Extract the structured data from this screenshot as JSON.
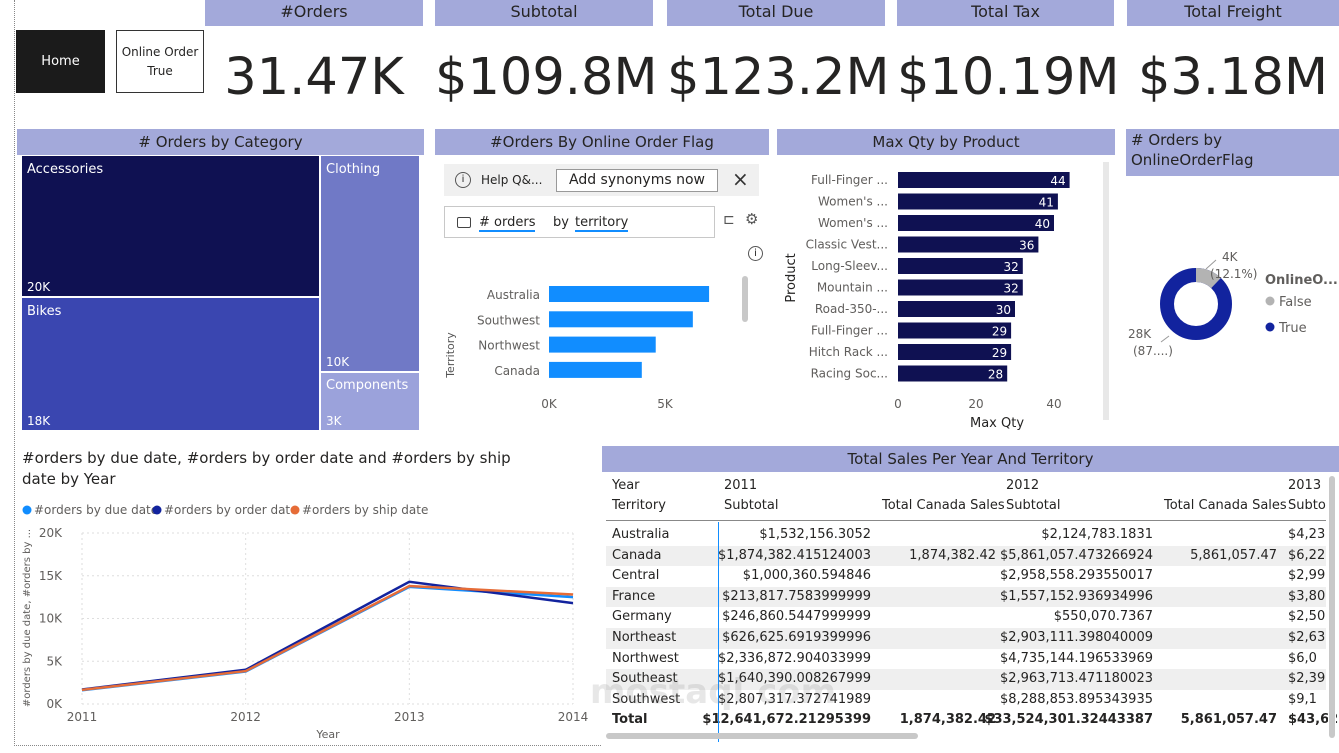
{
  "nav": {
    "home": "Home",
    "online_label": "Online Order",
    "online_value": "True"
  },
  "kpis": [
    {
      "label": "#Orders",
      "value": "31.47K"
    },
    {
      "label": "Subtotal",
      "value": "$109.8M"
    },
    {
      "label": "Total Due",
      "value": "$123.2M"
    },
    {
      "label": "Total Tax",
      "value": "$10.19M"
    },
    {
      "label": "Total Freight",
      "value": "$3.18M"
    }
  ],
  "treemap": {
    "title": "# Orders by Category",
    "cells": [
      {
        "label": "Accessories",
        "value": "20K",
        "color": "#0f1152"
      },
      {
        "label": "Bikes",
        "value": "18K",
        "color": "#3a46b0"
      },
      {
        "label": "Clothing",
        "value": "10K",
        "color": "#7079c6"
      },
      {
        "label": "Components",
        "value": "3K",
        "color": "#9ba2db"
      }
    ]
  },
  "qa": {
    "title": "#Orders By Online Order Flag",
    "help": "Help Q&...",
    "synonyms": "Add synonyms now",
    "query_a": "# orders",
    "query_b": "by",
    "query_c": "territory",
    "ylabel": "Territory",
    "ticks": [
      "0K",
      "5K"
    ]
  },
  "maxqty": {
    "title": "Max Qty by Product",
    "ylabel": "Product",
    "xlabel": "Max Qty",
    "ticks": [
      "0",
      "20",
      "40"
    ]
  },
  "donut": {
    "title": "# Orders by OnlineOrderFlag",
    "legend_title": "OnlineO...",
    "false_label": "False",
    "true_label": "True",
    "false_value": "4K",
    "false_pct": "(12.1%)",
    "true_value": "28K",
    "true_pct": "(87....)",
    "false_color": "#b3b3b3",
    "true_color": "#12239e"
  },
  "line": {
    "title1": "#orders by due date, #orders by order date and #orders by ship",
    "title2": "date by Year",
    "xlabel": "Year",
    "ylabel": "#orders by due date, #orders by ..."
  },
  "table": {
    "title": "Total Sales Per Year And Territory",
    "h_year": "Year",
    "h_territory": "Territory",
    "y2011": "2011",
    "y2012": "2012",
    "y2013": "2013",
    "h_subtotal": "Subtotal",
    "h_canada": "Total Canada Sales",
    "h_subtotal_cut": "Subto",
    "rows": [
      {
        "t": "Australia",
        "s11": "$1,532,156.3052",
        "c11": "",
        "s12": "$2,124,783.1831",
        "c12": "",
        "s13": "$4,23"
      },
      {
        "t": "Canada",
        "s11": "$1,874,382.415124003",
        "c11": "1,874,382.42",
        "s12": "$5,861,057.473266924",
        "c12": "5,861,057.47",
        "s13": "$6,22"
      },
      {
        "t": "Central",
        "s11": "$1,000,360.594846",
        "c11": "",
        "s12": "$2,958,558.293550017",
        "c12": "",
        "s13": "$2,99"
      },
      {
        "t": "France",
        "s11": "$213,817.7583999999",
        "c11": "",
        "s12": "$1,557,152.936934996",
        "c12": "",
        "s13": "$3,80"
      },
      {
        "t": "Germany",
        "s11": "$246,860.5447999999",
        "c11": "",
        "s12": "$550,070.7367",
        "c12": "",
        "s13": "$2,50"
      },
      {
        "t": "Northeast",
        "s11": "$626,625.6919399996",
        "c11": "",
        "s12": "$2,903,111.398040009",
        "c12": "",
        "s13": "$2,63"
      },
      {
        "t": "Northwest",
        "s11": "$2,336,872.904033999",
        "c11": "",
        "s12": "$4,735,144.196533969",
        "c12": "",
        "s13": "$6,0"
      },
      {
        "t": "Southeast",
        "s11": "$1,640,390.008267999",
        "c11": "",
        "s12": "$2,963,713.471180023",
        "c12": "",
        "s13": "$2,39"
      },
      {
        "t": "Southwest",
        "s11": "$2,807,317.372741989",
        "c11": "",
        "s12": "$8,288,853.895343935",
        "c12": "",
        "s13": "$9,1"
      }
    ],
    "total": {
      "t": "Total",
      "s11": "$12,641,672.21295399",
      "c11": "1,874,382.42",
      "s12": "$33,524,301.32443387",
      "c12": "5,861,057.47",
      "s13": "$43,62"
    }
  },
  "watermark": "mostaql.com",
  "chart_data": [
    {
      "type": "bar",
      "title": "#Orders By Online Order Flag",
      "ylabel": "Territory",
      "categories": [
        "Australia",
        "Southwest",
        "Northwest",
        "Canada"
      ],
      "values": [
        6900,
        6200,
        4600,
        4000
      ],
      "xlim": [
        0,
        8000
      ],
      "color": "#118dff"
    },
    {
      "type": "bar",
      "title": "Max Qty by Product",
      "xlabel": "Max Qty",
      "ylabel": "Product",
      "categories": [
        "Full-Finger ...",
        "Women's ...",
        "Women's ...",
        "Classic Vest...",
        "Long-Sleev...",
        "Mountain ...",
        "Road-350-...",
        "Full-Finger ...",
        "Hitch Rack ...",
        "Racing Soc..."
      ],
      "values": [
        44,
        41,
        40,
        36,
        32,
        32,
        30,
        29,
        29,
        28
      ],
      "xlim": [
        0,
        50
      ],
      "color": "#0f1152"
    },
    {
      "type": "pie",
      "title": "# Orders by OnlineOrderFlag",
      "categories": [
        "False",
        "True"
      ],
      "values": [
        0.121,
        0.879
      ]
    },
    {
      "type": "line",
      "x": [
        "2011",
        "2012",
        "2013",
        "2014"
      ],
      "series": [
        {
          "name": "#orders by due date",
          "values": [
            1600,
            3800,
            13700,
            12500
          ],
          "color": "#118dff"
        },
        {
          "name": "#orders by order date",
          "values": [
            1700,
            4000,
            14300,
            11800
          ],
          "color": "#12239e"
        },
        {
          "name": "#orders by ship date",
          "values": [
            1650,
            3850,
            13800,
            12800
          ],
          "color": "#e66c37"
        }
      ],
      "ylim": [
        0,
        20000
      ],
      "yticks": [
        "0K",
        "5K",
        "10K",
        "15K",
        "20K"
      ]
    }
  ]
}
